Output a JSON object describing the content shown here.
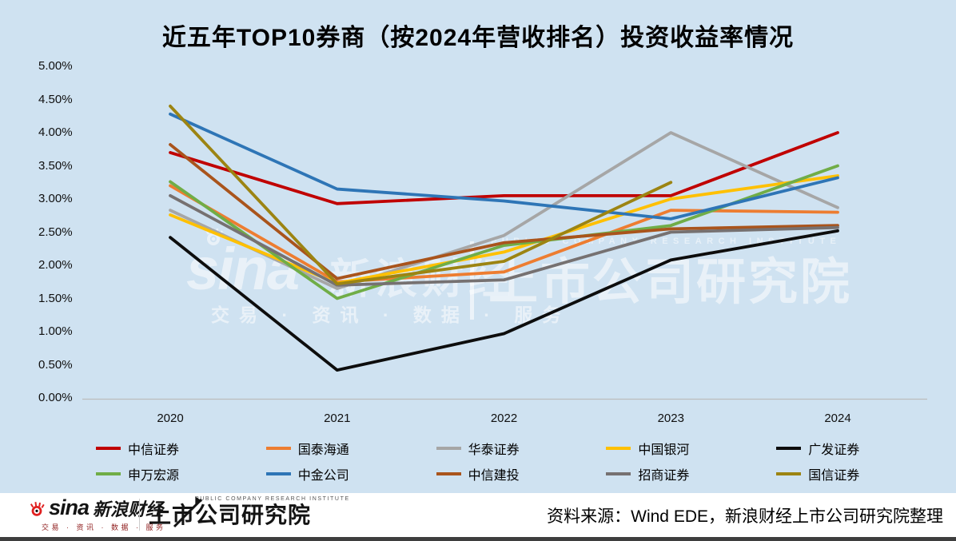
{
  "title": "近五年TOP10券商（按2024年营收排名）投资收益率情况",
  "chart_data": {
    "type": "line",
    "x": [
      "2020",
      "2021",
      "2022",
      "2023",
      "2024"
    ],
    "series": [
      {
        "name": "中信证券",
        "color": "#c00000",
        "values": [
          3.7,
          2.93,
          3.05,
          3.05,
          4.0
        ]
      },
      {
        "name": "国泰海通",
        "color": "#ed7d31",
        "values": [
          3.2,
          1.75,
          1.9,
          2.83,
          2.8
        ]
      },
      {
        "name": "华泰证券",
        "color": "#a6a6a6",
        "values": [
          2.83,
          1.65,
          2.45,
          4.0,
          2.87
        ]
      },
      {
        "name": "中国银河",
        "color": "#ffc000",
        "values": [
          2.76,
          1.73,
          2.2,
          3.0,
          3.35
        ]
      },
      {
        "name": "广发证券",
        "color": "#0d0d0d",
        "values": [
          2.42,
          0.42,
          0.97,
          2.08,
          2.52
        ]
      },
      {
        "name": "申万宏源",
        "color": "#70ad47",
        "values": [
          3.26,
          1.5,
          2.3,
          2.6,
          3.5
        ]
      },
      {
        "name": "中金公司",
        "color": "#2e75b6",
        "values": [
          4.28,
          3.15,
          2.97,
          2.7,
          3.32
        ]
      },
      {
        "name": "中信建投",
        "color": "#a9541c",
        "values": [
          3.82,
          1.8,
          2.34,
          2.55,
          2.6
        ]
      },
      {
        "name": "招商证券",
        "color": "#767171",
        "values": [
          3.05,
          1.7,
          1.78,
          2.5,
          2.57
        ]
      },
      {
        "name": "国信证券",
        "color": "#9c8412",
        "values": [
          4.4,
          1.72,
          2.06,
          3.25,
          null
        ]
      }
    ],
    "title": "近五年TOP10券商（按2024年营收排名）投资收益率情况",
    "xlabel": "",
    "ylabel": "",
    "ylim": [
      0,
      5
    ],
    "ytick_step": 0.5,
    "ytick_labels": [
      "0.00%",
      "0.50%",
      "1.00%",
      "1.50%",
      "2.00%",
      "2.50%",
      "3.00%",
      "3.50%",
      "4.00%",
      "4.50%",
      "5.00%"
    ],
    "grid": false,
    "legend_position": "bottom"
  },
  "watermark": {
    "sina": "sina",
    "sina_cn": "新浪财经",
    "tagline": "交易 · 资讯 · 数据 · 服务",
    "institute_en": "PUBLIC COMPANY RESEARCH INSTITUTE",
    "institute": "上市公司研究院"
  },
  "footer": {
    "sina": "sina",
    "sina_cn": "新浪财经",
    "tagline": "交易 · 资讯 · 数据 · 服务",
    "institute_en": "PUBLIC COMPANY RESEARCH INSTITUTE",
    "institute": "上市公司研究院",
    "source": "资料来源：Wind EDE，新浪财经上市公司研究院整理"
  }
}
